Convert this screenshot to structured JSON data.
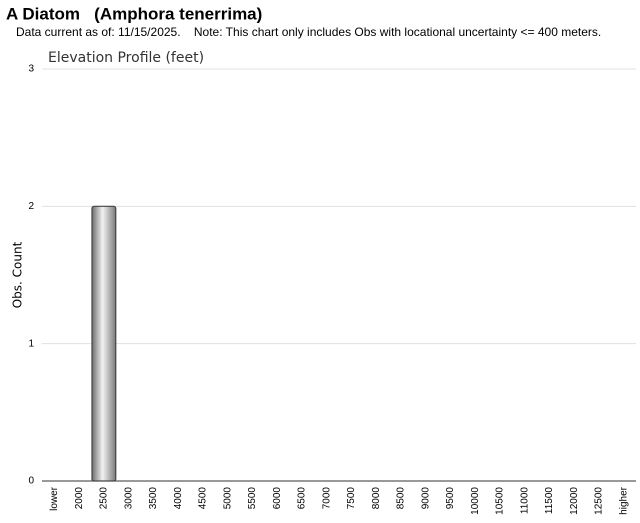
{
  "chart_data": {
    "type": "bar",
    "title": "A Diatom   (Amphora tenerrima)",
    "subtitle": "Data current as of: 11/15/2025.    Note: This chart only includes Obs with locational uncertainty <= 400 meters.",
    "chart_title": "Elevation Profile (feet)",
    "y_label": "Obs. Count",
    "categories": [
      "lower",
      "2000",
      "2500",
      "3000",
      "3500",
      "4000",
      "4500",
      "5000",
      "5500",
      "6000",
      "6500",
      "7000",
      "7500",
      "8000",
      "8500",
      "9000",
      "9500",
      "10000",
      "10500",
      "11000",
      "11500",
      "12000",
      "12500",
      "higher"
    ],
    "values": [
      0,
      0,
      2,
      0,
      0,
      0,
      0,
      0,
      0,
      0,
      0,
      0,
      0,
      0,
      0,
      0,
      0,
      0,
      0,
      0,
      0,
      0,
      0,
      0
    ],
    "color": "#a0a0a0",
    "ylim": [
      0,
      3
    ],
    "yticks": [
      0,
      1,
      2,
      3
    ],
    "grid": true
  }
}
